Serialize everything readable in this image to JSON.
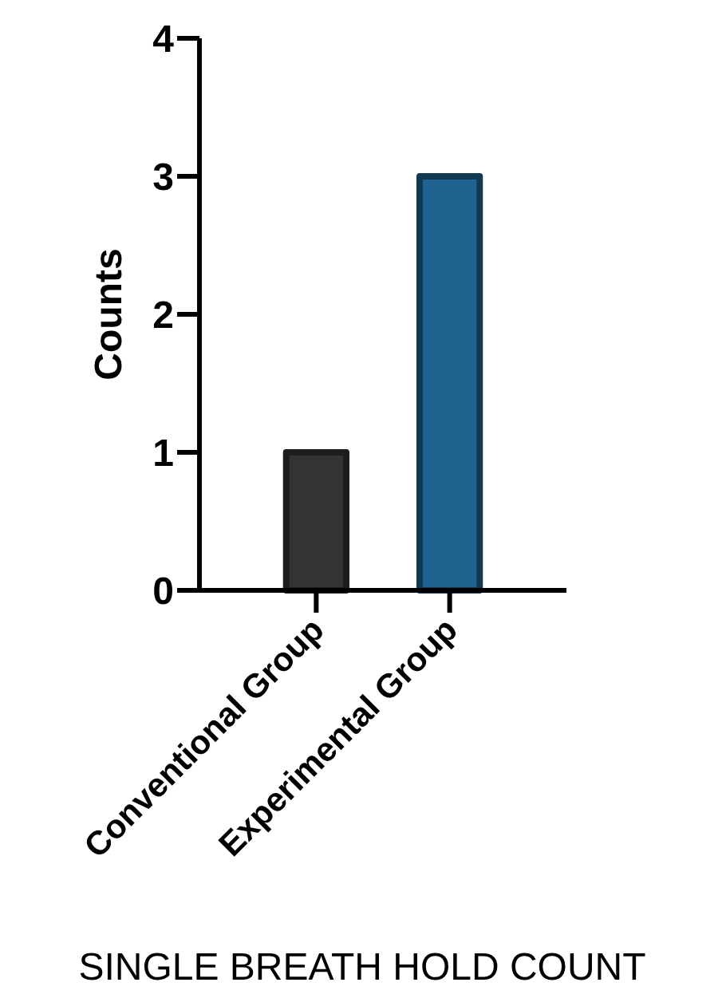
{
  "chart_data": {
    "type": "bar",
    "xlabel": "SINGLE BREATH HOLD COUNT",
    "ylabel": "Counts",
    "categories": [
      "Conventional Group",
      "Experimental Group"
    ],
    "values": [
      1,
      3
    ],
    "colors": [
      "#333333",
      "#1f6391"
    ],
    "ylim": [
      0,
      4
    ],
    "yticks": [
      0,
      1,
      2,
      3,
      4
    ],
    "grid": false
  }
}
